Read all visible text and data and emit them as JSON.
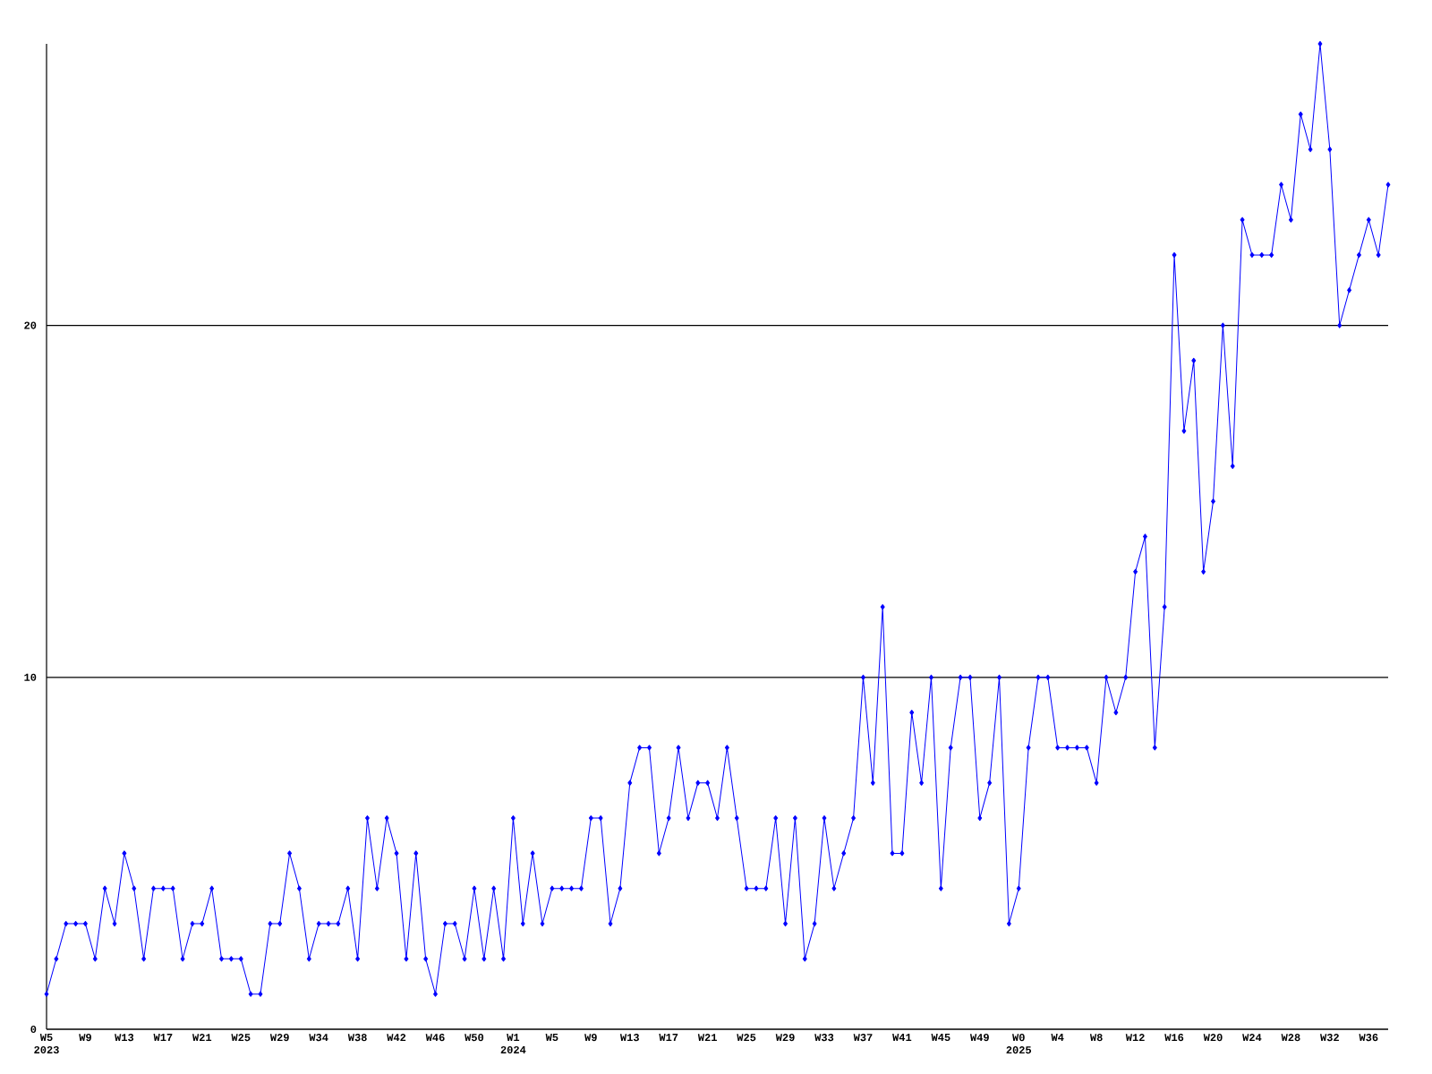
{
  "chart_data": {
    "type": "line",
    "categories": [
      "W5 2023",
      null,
      null,
      null,
      "W9",
      null,
      null,
      null,
      "W13",
      null,
      null,
      null,
      "W17",
      null,
      null,
      null,
      "W21",
      null,
      null,
      null,
      "W25",
      null,
      null,
      null,
      "W29",
      null,
      null,
      null,
      "W34",
      null,
      null,
      null,
      "W38",
      null,
      null,
      null,
      "W42",
      null,
      null,
      null,
      "W46",
      null,
      null,
      null,
      "W50",
      null,
      null,
      null,
      "W1 2024",
      null,
      null,
      null,
      "W5",
      null,
      null,
      null,
      "W9",
      null,
      null,
      null,
      "W13",
      null,
      null,
      null,
      "W17",
      null,
      null,
      null,
      "W21",
      null,
      null,
      null,
      "W25",
      null,
      null,
      null,
      "W29",
      null,
      null,
      null,
      "W33",
      null,
      null,
      null,
      "W37",
      null,
      null,
      null,
      "W41",
      null,
      null,
      null,
      "W45",
      null,
      null,
      null,
      "W49",
      null,
      null,
      null,
      "W0 2025",
      null,
      null,
      null,
      "W4",
      null,
      null,
      null,
      "W8",
      null,
      null,
      null,
      "W12",
      null,
      null,
      null,
      "W16",
      null,
      null,
      null,
      "W20",
      null,
      null,
      null,
      "W24",
      null,
      null,
      null,
      "W28",
      null,
      null,
      null,
      "W32",
      null,
      null,
      null,
      "W36",
      null,
      null
    ],
    "values": [
      1,
      2,
      3,
      3,
      3,
      2,
      4,
      3,
      5,
      4,
      2,
      4,
      4,
      4,
      2,
      3,
      3,
      4,
      2,
      2,
      2,
      1,
      1,
      3,
      3,
      5,
      4,
      2,
      3,
      3,
      3,
      4,
      2,
      6,
      4,
      6,
      5,
      2,
      5,
      2,
      1,
      3,
      3,
      2,
      4,
      2,
      4,
      2,
      6,
      3,
      5,
      3,
      4,
      4,
      4,
      4,
      6,
      6,
      3,
      4,
      7,
      8,
      8,
      5,
      6,
      8,
      6,
      7,
      7,
      6,
      8,
      6,
      4,
      4,
      4,
      6,
      3,
      6,
      2,
      3,
      6,
      4,
      5,
      6,
      10,
      7,
      12,
      5,
      5,
      9,
      7,
      10,
      4,
      8,
      10,
      10,
      6,
      7,
      10,
      3,
      4,
      8,
      10,
      10,
      8,
      8,
      8,
      8,
      7,
      10,
      9,
      10,
      13,
      14,
      8,
      12,
      22,
      17,
      19,
      13,
      15,
      20,
      16,
      23,
      22,
      22,
      22,
      24,
      23,
      26,
      25,
      28,
      25,
      20,
      21,
      22,
      23,
      22,
      24
    ],
    "color": "#0000ff",
    "marker": "diamond",
    "grid": "y",
    "ylim": [
      0,
      28
    ],
    "yticks": [
      0,
      10,
      20
    ]
  }
}
